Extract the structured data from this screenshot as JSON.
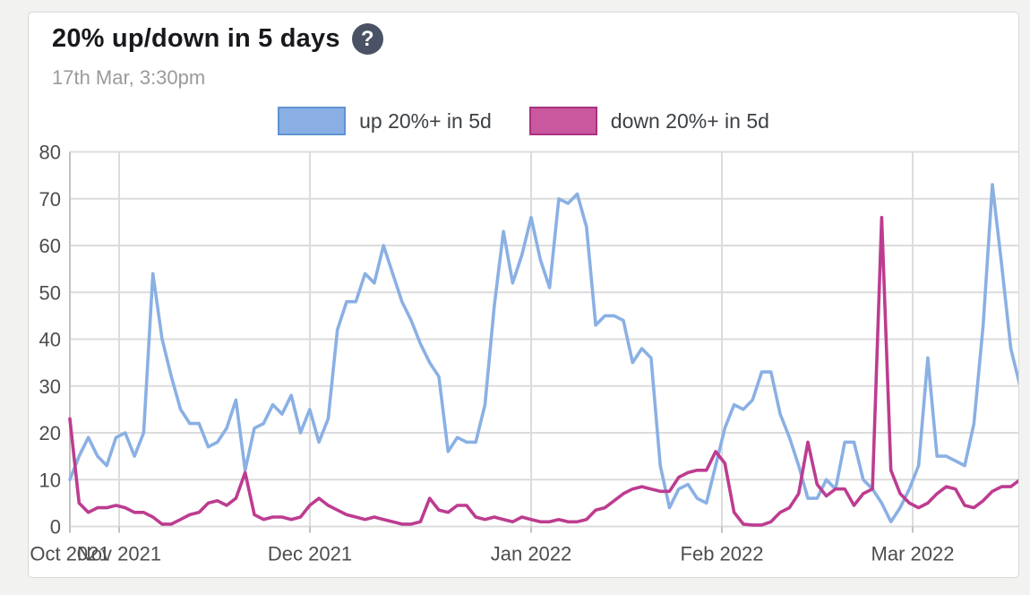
{
  "card": {
    "title": "20% up/down in 5 days",
    "help_icon_glyph": "?",
    "subtitle": "17th Mar, 3:30pm"
  },
  "legend": [
    {
      "label": "up 20%+ in 5d",
      "fill": "#89afe4",
      "border": "#5f93d2"
    },
    {
      "label": "down 20%+ in 5d",
      "fill": "#c9589f",
      "border": "#a93181"
    }
  ],
  "chart_data": {
    "type": "line",
    "title": "20% up/down in 5 days",
    "subtitle": "17th Mar, 3:30pm",
    "xlabel": "",
    "ylabel": "",
    "ylim": [
      0,
      80
    ],
    "y_ticks": [
      0,
      10,
      20,
      30,
      40,
      50,
      60,
      70,
      80
    ],
    "x_tick_labels": [
      "Oct 2021",
      "Nov 2021",
      "Dec 2021",
      "Jan 2022",
      "Feb 2022",
      "Mar 2022"
    ],
    "x_tick_indices": [
      0,
      5.34,
      26.02,
      50,
      70.68,
      91.36
    ],
    "grid": true,
    "legend_position": "top",
    "series": [
      {
        "name": "up 20%+ in 5d",
        "color": "#8ab0e4",
        "values": [
          10,
          15,
          19,
          15,
          13,
          19,
          20,
          15,
          20,
          54,
          40,
          32,
          25,
          22,
          22,
          17,
          18,
          21,
          27,
          12,
          21,
          22,
          26,
          24,
          28,
          20,
          25,
          18,
          23,
          42,
          48,
          48,
          54,
          52,
          60,
          54,
          48,
          44,
          39,
          35,
          32,
          16,
          19,
          18,
          18,
          26,
          47,
          63,
          52,
          58,
          66,
          57,
          51,
          70,
          69,
          71,
          64,
          43,
          45,
          45,
          44,
          35,
          38,
          36,
          13,
          4,
          8,
          9,
          6,
          5,
          13,
          21,
          26,
          25,
          27,
          33,
          33,
          24,
          19,
          13,
          6,
          6,
          10,
          8,
          18,
          18,
          10,
          8,
          5,
          1,
          4,
          8,
          13,
          36,
          15,
          15,
          14,
          13,
          22,
          43,
          73,
          56,
          38,
          30
        ]
      },
      {
        "name": "down 20%+ in 5d",
        "color": "#bd3c90",
        "values": [
          23,
          5,
          3,
          4,
          4,
          4.5,
          4,
          3,
          3,
          2,
          0.5,
          0.5,
          1.5,
          2.5,
          3,
          5,
          5.5,
          4.5,
          6,
          11.5,
          2.5,
          1.5,
          2,
          2,
          1.5,
          2,
          4.5,
          6,
          4.5,
          3.5,
          2.5,
          2,
          1.5,
          2,
          1.5,
          1,
          0.5,
          0.5,
          1,
          6,
          3.5,
          3,
          4.5,
          4.5,
          2,
          1.5,
          2,
          1.5,
          1,
          2,
          1.5,
          1,
          1,
          1.5,
          1,
          1,
          1.5,
          3.5,
          4,
          5.5,
          7,
          8,
          8.5,
          8,
          7.5,
          7.5,
          10.5,
          11.5,
          12,
          12,
          16,
          13.5,
          3,
          0.5,
          0.3,
          0.3,
          1,
          3,
          4,
          7,
          18,
          9,
          6.5,
          8,
          8,
          4.5,
          7,
          8,
          66,
          12,
          7,
          5,
          4,
          5,
          7,
          8.5,
          8,
          4.5,
          4,
          5.5,
          7.5,
          8.5,
          8.5,
          10
        ]
      }
    ]
  }
}
